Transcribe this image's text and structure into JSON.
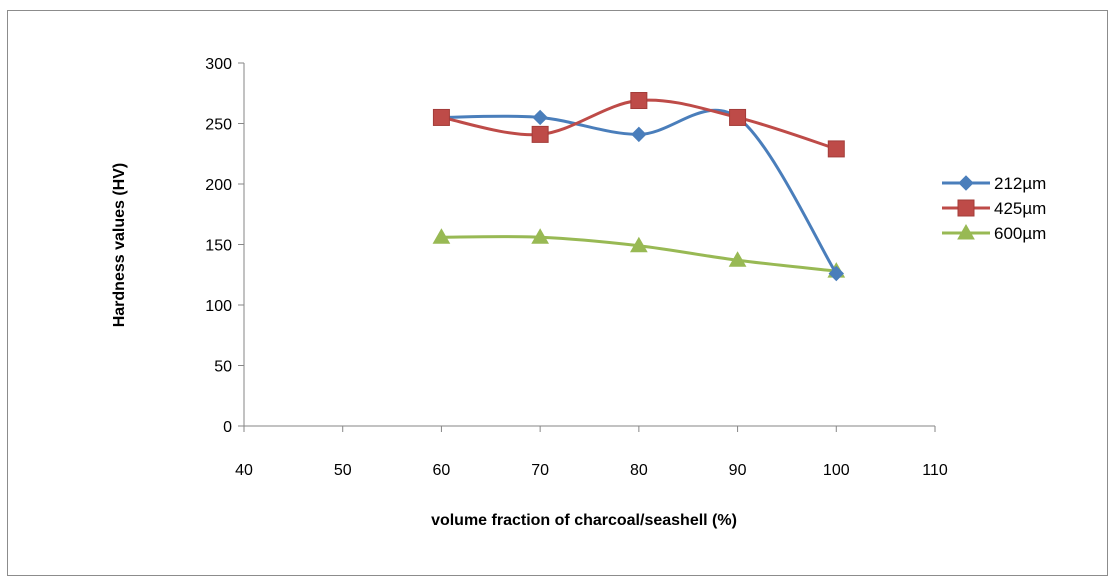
{
  "chart_data": {
    "type": "line",
    "title": "",
    "xlabel": "volume fraction of charcoal/seashell (%)",
    "ylabel": "Hardness values (HV)",
    "xlim": [
      40,
      110
    ],
    "ylim": [
      0,
      300
    ],
    "x_ticks": [
      "40",
      "50",
      "60",
      "70",
      "80",
      "90",
      "100",
      "110"
    ],
    "y_ticks": [
      "0",
      "50",
      "100",
      "150",
      "200",
      "250",
      "300"
    ],
    "grid": false,
    "legend_position": "right",
    "series": [
      {
        "name": "212µm",
        "color": "#4a7ebb",
        "marker": "diamond",
        "x": [
          60,
          70,
          80,
          90,
          100
        ],
        "y": [
          255,
          255,
          241,
          255,
          126
        ]
      },
      {
        "name": "425µm",
        "color": "#be4b48",
        "marker": "square",
        "x": [
          60,
          70,
          80,
          90,
          100
        ],
        "y": [
          255,
          241,
          269,
          255,
          229
        ]
      },
      {
        "name": "600µm",
        "color": "#98b954",
        "marker": "triangle",
        "x": [
          60,
          70,
          80,
          90,
          100
        ],
        "y": [
          156,
          156,
          149,
          137,
          128
        ]
      }
    ]
  }
}
